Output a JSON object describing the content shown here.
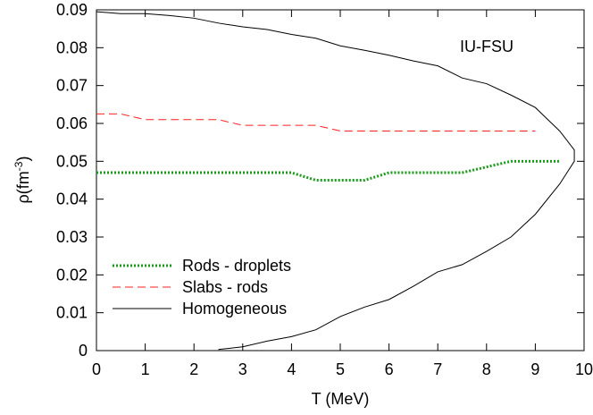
{
  "chart_data": {
    "type": "line",
    "annotation": "IU-FSU",
    "xlabel": "T (MeV)",
    "ylabel": "ρ(fm",
    "ylabel_superscript": "-3",
    "ylabel_end": ")",
    "xlim": [
      0,
      10
    ],
    "ylim": [
      0,
      0.09
    ],
    "xticks": [
      0,
      1,
      2,
      3,
      4,
      5,
      6,
      7,
      8,
      9,
      10
    ],
    "yticks": [
      0,
      0.01,
      0.02,
      0.03,
      0.04,
      0.05,
      0.06,
      0.07,
      0.08,
      0.09
    ],
    "legend": "lower-left",
    "series": [
      {
        "name": "Rods - droplets",
        "color": "#1a9a1a",
        "dash": "dotted",
        "x": [
          0,
          0.5,
          1,
          1.5,
          2,
          2.5,
          3,
          3.5,
          4,
          4.5,
          5,
          5.5,
          6,
          6.5,
          7,
          7.5,
          8,
          8.5,
          9,
          9.5
        ],
        "values": [
          0.047,
          0.047,
          0.047,
          0.047,
          0.047,
          0.047,
          0.047,
          0.047,
          0.047,
          0.045,
          0.045,
          0.045,
          0.047,
          0.047,
          0.047,
          0.047,
          0.0485,
          0.05,
          0.05,
          0.05
        ]
      },
      {
        "name": "Slabs - rods",
        "color": "#ff2020",
        "dash": "dashed",
        "x": [
          0,
          0.5,
          1,
          1.5,
          2,
          2.5,
          3,
          3.5,
          4,
          4.5,
          5,
          5.5,
          6,
          6.5,
          7,
          7.5,
          8,
          8.5,
          9
        ],
        "values": [
          0.0625,
          0.0625,
          0.061,
          0.061,
          0.061,
          0.061,
          0.0595,
          0.0595,
          0.0595,
          0.0595,
          0.058,
          0.058,
          0.058,
          0.058,
          0.058,
          0.058,
          0.058,
          0.058,
          0.058
        ]
      },
      {
        "name": "Homogeneous",
        "color": "#000000",
        "dash": "solid",
        "x": [
          0,
          0.5,
          1,
          1.5,
          2,
          2.5,
          3,
          3.5,
          4,
          4.5,
          5,
          5.5,
          6,
          6.5,
          7,
          7.5,
          8,
          8.5,
          9,
          9.5,
          9.8,
          9.8,
          9.5,
          9,
          8.5,
          8,
          7.5,
          7,
          6.5,
          6,
          5.5,
          5,
          4.5,
          4,
          3.5,
          3,
          2.5
        ],
        "values": [
          0.0895,
          0.089,
          0.089,
          0.0885,
          0.0878,
          0.0865,
          0.0855,
          0.0848,
          0.0835,
          0.0825,
          0.0805,
          0.0793,
          0.078,
          0.0765,
          0.0752,
          0.072,
          0.0705,
          0.0675,
          0.0642,
          0.058,
          0.053,
          0.05,
          0.044,
          0.036,
          0.03,
          0.0262,
          0.0227,
          0.0208,
          0.017,
          0.0135,
          0.0115,
          0.009,
          0.0055,
          0.0037,
          0.0025,
          0.001,
          0.0003
        ]
      }
    ]
  }
}
